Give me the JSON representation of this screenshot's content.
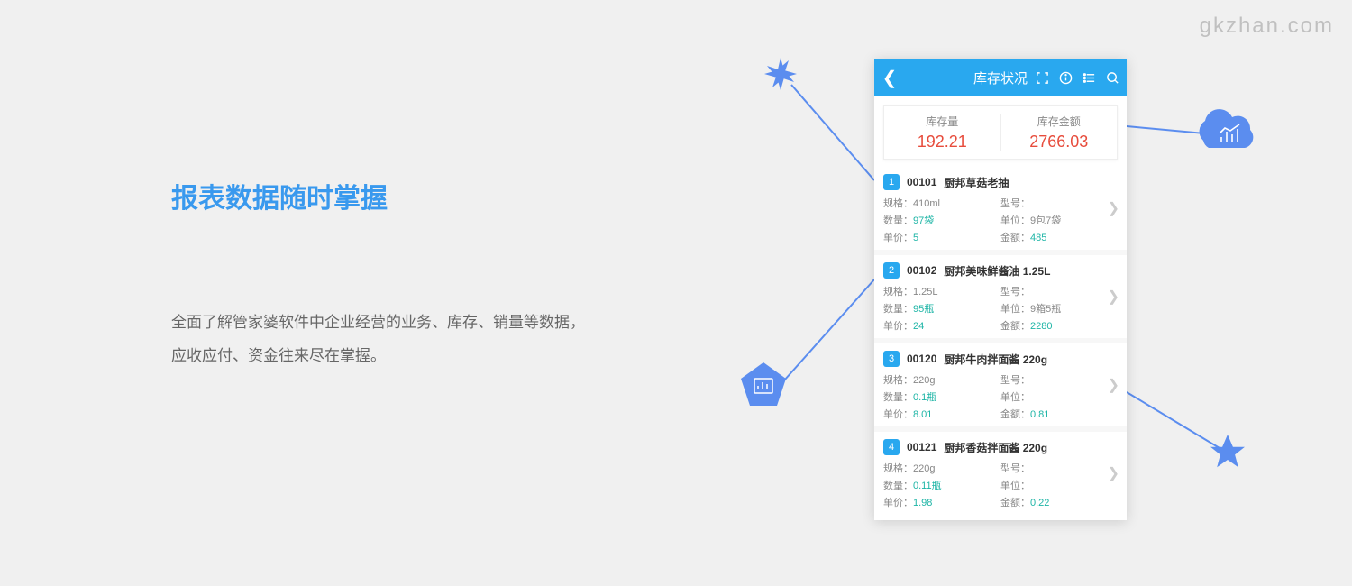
{
  "watermark": "gkzhan.com",
  "headline": "报表数据随时掌握",
  "description": "全面了解管家婆软件中企业经营的业务、库存、销量等数据，应收应付、资金往来尽在掌握。",
  "phone": {
    "title": "库存状况",
    "summary": [
      {
        "label": "库存量",
        "value": "192.21"
      },
      {
        "label": "库存金额",
        "value": "2766.03"
      }
    ],
    "items": [
      {
        "num": "1",
        "code": "00101",
        "name": "厨邦草菇老抽",
        "spec_label": "规格：",
        "spec": "410ml",
        "model_label": "型号：",
        "model": "",
        "qty_label": "数量：",
        "qty": "97袋",
        "unit_label": "单位：",
        "unit": "9包7袋",
        "price_label": "单价：",
        "price": "5",
        "amount_label": "金额：",
        "amount": "485"
      },
      {
        "num": "2",
        "code": "00102",
        "name": "厨邦美味鲜酱油 1.25L",
        "spec_label": "规格：",
        "spec": "1.25L",
        "model_label": "型号：",
        "model": "",
        "qty_label": "数量：",
        "qty": "95瓶",
        "unit_label": "单位：",
        "unit": "9箱5瓶",
        "price_label": "单价：",
        "price": "24",
        "amount_label": "金额：",
        "amount": "2280"
      },
      {
        "num": "3",
        "code": "00120",
        "name": "厨邦牛肉拌面酱 220g",
        "spec_label": "规格：",
        "spec": "220g",
        "model_label": "型号：",
        "model": "",
        "qty_label": "数量：",
        "qty": "0.1瓶",
        "unit_label": "单位：",
        "unit": "",
        "price_label": "单价：",
        "price": "8.01",
        "amount_label": "金额：",
        "amount": "0.81"
      },
      {
        "num": "4",
        "code": "00121",
        "name": "厨邦香菇拌面酱 220g",
        "spec_label": "规格：",
        "spec": "220g",
        "model_label": "型号：",
        "model": "",
        "qty_label": "数量：",
        "qty": "0.11瓶",
        "unit_label": "单位：",
        "unit": "",
        "price_label": "单价：",
        "price": "1.98",
        "amount_label": "金额：",
        "amount": "0.22"
      }
    ]
  },
  "colors": {
    "accent_blue": "#3999ee",
    "header_blue": "#29a8ef",
    "deco_blue": "#5b8def",
    "value_red": "#e74c3c",
    "teal": "#1eb5a6",
    "bg": "#f0f0f0"
  }
}
